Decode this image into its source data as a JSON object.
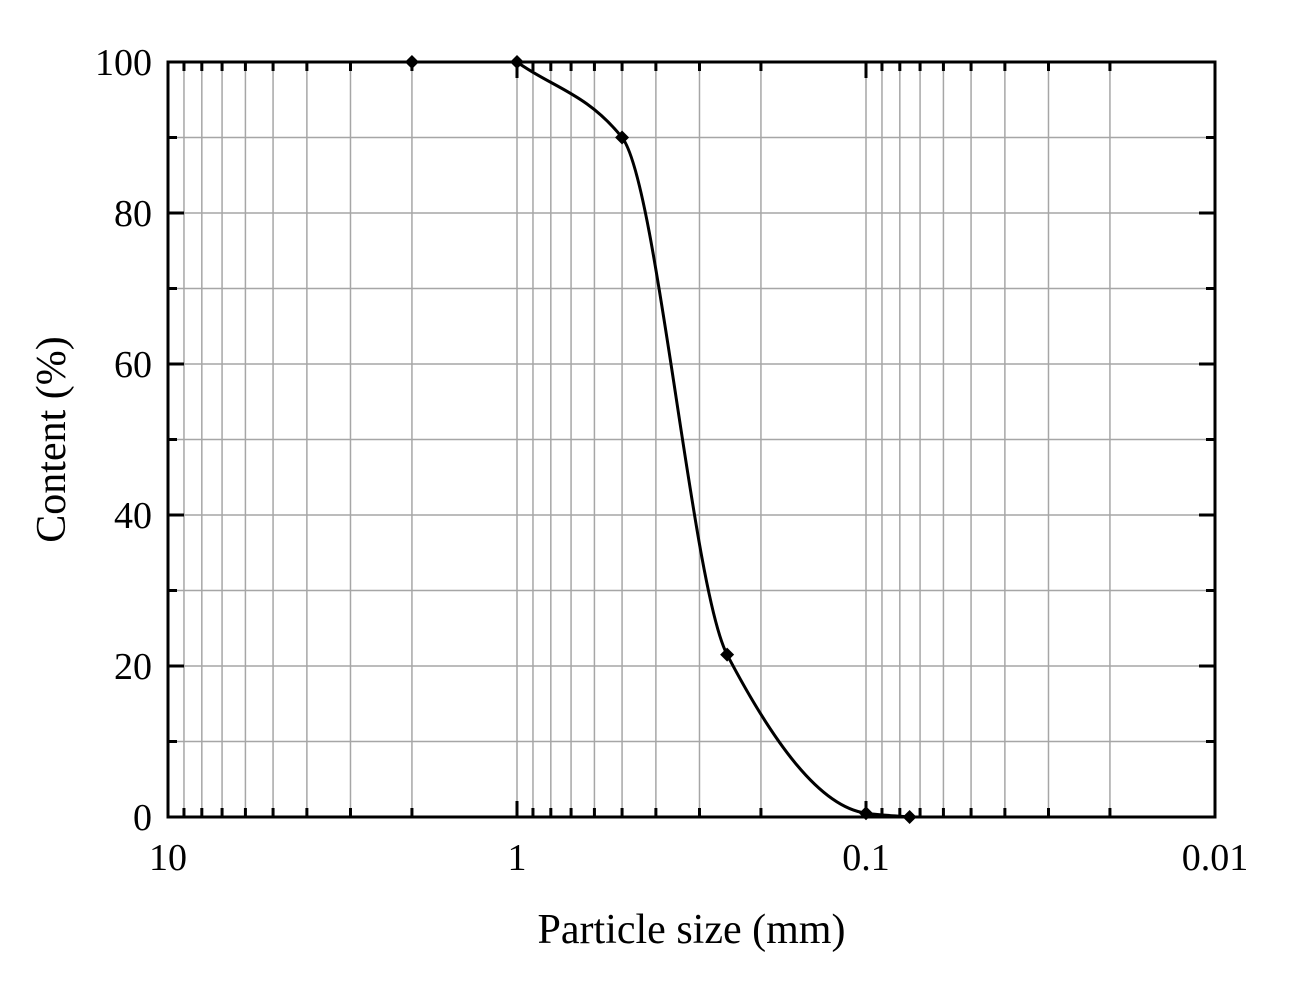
{
  "chart_data": {
    "type": "line",
    "xlabel": "Particle size (mm)",
    "ylabel": "Content (%)",
    "x_scale": "log",
    "x_reversed": true,
    "xlim": [
      10,
      0.01
    ],
    "ylim": [
      0,
      100
    ],
    "x_ticks": [
      10,
      1,
      0.1,
      0.01
    ],
    "x_tick_labels": [
      "10",
      "1",
      "0.1",
      "0.01"
    ],
    "y_ticks": [
      0,
      20,
      40,
      60,
      80,
      100
    ],
    "y_tick_labels": [
      "0",
      "20",
      "40",
      "60",
      "80",
      "100"
    ],
    "grid": true,
    "marker": "diamond",
    "line_color": "#000000",
    "series": [
      {
        "x": [
          2,
          1,
          0.5,
          0.25,
          0.1,
          0.075
        ],
        "y": [
          100,
          100,
          90,
          21.5,
          0.5,
          0
        ]
      }
    ]
  }
}
